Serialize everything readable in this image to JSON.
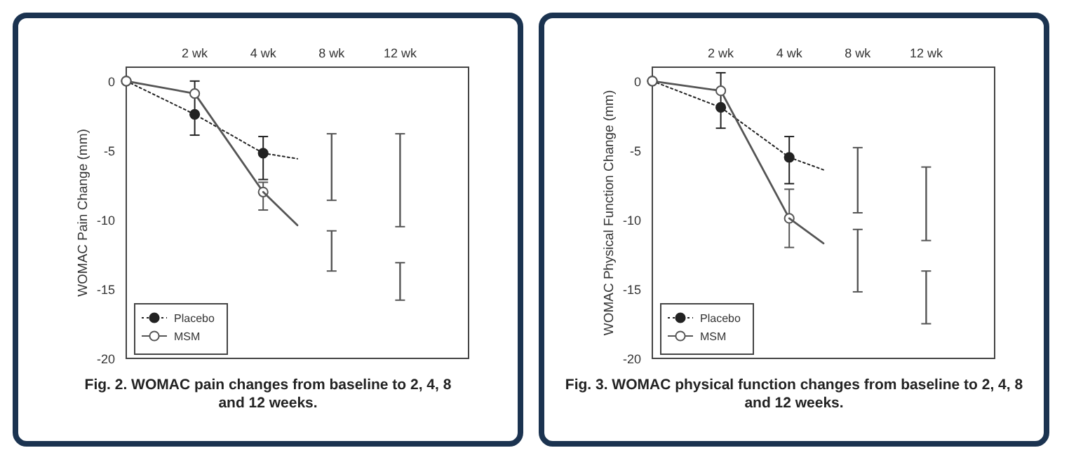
{
  "chart_data": [
    {
      "type": "line",
      "title": "Fig. 2. WOMAC pain changes from baseline to 2, 4, 8\nand 12 weeks.",
      "ylabel": "WOMAC Pain Change (mm)",
      "categories": [
        null,
        null,
        "2 wk",
        null,
        "4 wk",
        null,
        "8 wk",
        null,
        "12 wk",
        null,
        null
      ],
      "ylim": [
        -20,
        1
      ],
      "yticks": [
        0,
        -5,
        -10,
        -15,
        -20
      ],
      "grid": false,
      "legend": "bottom left",
      "series": [
        {
          "name": "Placebo",
          "color": "#222222",
          "line_style": "dotted",
          "marker": "circle",
          "values": [
            0,
            null,
            -2.4,
            null,
            -5.2,
            null,
            null,
            null,
            null,
            null,
            null
          ],
          "errors": [
            null,
            null,
            [
              -3.9,
              0
            ],
            null,
            [
              -7.1,
              -4.0
            ],
            null,
            null,
            null,
            null,
            null,
            null
          ]
        },
        {
          "name": "MSM",
          "color": "#555555",
          "line_style": "solid",
          "marker": "circle",
          "values": [
            0,
            null,
            -0.9,
            null,
            -8.0,
            null,
            null,
            null,
            null,
            null,
            null
          ],
          "errors": [
            null,
            null,
            null,
            null,
            [
              -9.3,
              -7.3
            ],
            null,
            null,
            null,
            null,
            null,
            null
          ]
        },
        {
          "color": "#222222",
          "line_style": "dotted",
          "values": [
            null,
            null,
            null,
            null,
            -5.2,
            -5.6,
            null,
            null,
            null,
            null,
            null
          ]
        },
        {
          "color": "#555555",
          "line_style": "solid",
          "values": [
            null,
            null,
            null,
            null,
            -8.0,
            -10.4,
            null,
            null,
            null,
            null,
            null
          ]
        },
        {
          "type": "bar",
          "color": "#555555",
          "base": [
            null,
            null,
            null,
            null,
            null,
            null,
            -8.6,
            null,
            -10.5,
            null,
            null
          ],
          "values": [
            null,
            null,
            null,
            null,
            null,
            null,
            4.8,
            null,
            6.7,
            null,
            null
          ]
        },
        {
          "type": "bar",
          "color": "#555555",
          "base": [
            null,
            null,
            null,
            null,
            null,
            null,
            -13.7,
            null,
            -15.8,
            null,
            null
          ],
          "values": [
            null,
            null,
            null,
            null,
            null,
            null,
            2.9,
            null,
            2.7,
            null,
            null
          ]
        }
      ]
    },
    {
      "type": "line",
      "title": "Fig. 3. WOMAC physical function changes from baseline to 2, 4, 8\nand 12 weeks.",
      "ylabel": "WOMAC Physical Function Change (mm)",
      "categories": [
        null,
        null,
        "2 wk",
        null,
        "4 wk",
        null,
        "8 wk",
        null,
        "12 wk",
        null,
        null
      ],
      "ylim": [
        -20,
        1
      ],
      "yticks": [
        0,
        -5,
        -10,
        -15,
        -20
      ],
      "grid": false,
      "legend": "bottom left",
      "series": [
        {
          "name": "Placebo",
          "color": "#222222",
          "line_style": "dotted",
          "marker": "circle",
          "values": [
            0,
            null,
            -1.9,
            null,
            -5.5,
            null,
            null,
            null,
            null,
            null,
            null
          ],
          "errors": [
            null,
            null,
            [
              -3.4,
              0.6
            ],
            null,
            [
              -7.4,
              -4.0
            ],
            null,
            null,
            null,
            null,
            null,
            null
          ]
        },
        {
          "name": "MSM",
          "color": "#555555",
          "line_style": "solid",
          "marker": "circle",
          "values": [
            0,
            null,
            -0.7,
            null,
            -9.9,
            null,
            null,
            null,
            null,
            null,
            null
          ],
          "errors": [
            null,
            null,
            null,
            null,
            [
              -12.0,
              -7.8
            ],
            null,
            null,
            null,
            null,
            null,
            null
          ]
        },
        {
          "color": "#222222",
          "line_style": "dotted",
          "values": [
            null,
            null,
            null,
            null,
            -5.5,
            -6.4,
            null,
            null,
            null,
            null,
            null
          ]
        },
        {
          "color": "#555555",
          "line_style": "solid",
          "values": [
            null,
            null,
            null,
            null,
            -9.9,
            -11.7,
            null,
            null,
            null,
            null,
            null
          ]
        },
        {
          "type": "bar",
          "color": "#555555",
          "base": [
            null,
            null,
            null,
            null,
            null,
            null,
            -9.5,
            null,
            -11.5,
            null,
            null
          ],
          "values": [
            null,
            null,
            null,
            null,
            null,
            null,
            4.7,
            null,
            5.3,
            null,
            null
          ]
        },
        {
          "type": "bar",
          "color": "#555555",
          "base": [
            null,
            null,
            null,
            null,
            null,
            null,
            -15.2,
            null,
            -17.5,
            null,
            null
          ],
          "values": [
            null,
            null,
            null,
            null,
            null,
            null,
            4.5,
            null,
            3.8,
            null,
            null
          ]
        }
      ]
    }
  ]
}
